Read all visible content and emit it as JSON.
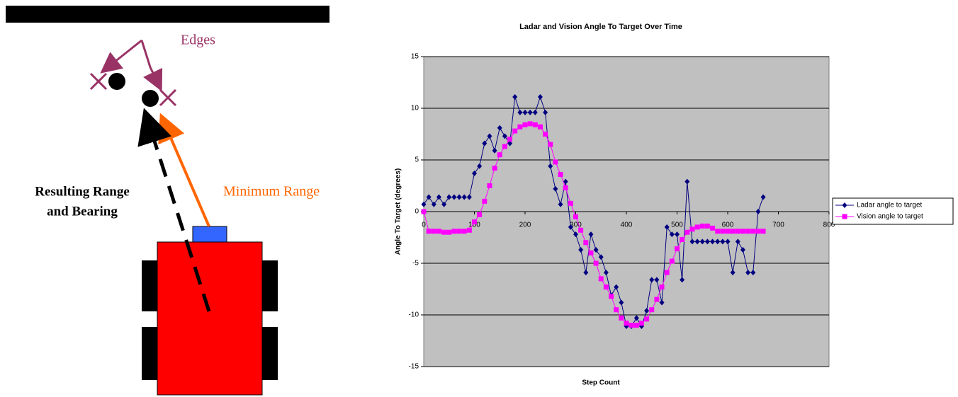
{
  "diagram": {
    "edges_label": "Edges",
    "minimum_range_label": "Minimum Range",
    "result_label_line1": "Resulting Range",
    "result_label_line2": "and Bearing"
  },
  "chart_data": {
    "type": "line",
    "title": "Ladar and Vision Angle To Target Over Time",
    "x_label": "Step Count",
    "y_label": "Angle To Target (degrees)",
    "x": [
      0,
      10,
      20,
      30,
      40,
      50,
      60,
      70,
      80,
      90,
      100,
      110,
      120,
      130,
      140,
      150,
      160,
      170,
      180,
      190,
      200,
      210,
      220,
      230,
      240,
      250,
      260,
      270,
      280,
      290,
      300,
      310,
      320,
      330,
      340,
      350,
      360,
      370,
      380,
      390,
      400,
      410,
      420,
      430,
      440,
      450,
      460,
      470,
      480,
      490,
      500,
      510,
      520,
      530,
      540,
      550,
      560,
      570,
      580,
      590,
      600,
      610,
      620,
      630,
      640,
      650,
      660,
      670
    ],
    "series": [
      {
        "name": "Ladar angle to target",
        "color": "#000080",
        "marker": "diamond",
        "values": [
          0.7,
          1.4,
          0.7,
          1.4,
          0.7,
          1.4,
          1.4,
          1.4,
          1.4,
          1.4,
          3.7,
          4.4,
          6.6,
          7.3,
          5.9,
          8.1,
          7.3,
          6.6,
          11.1,
          9.6,
          9.6,
          9.6,
          9.6,
          11.1,
          9.6,
          4.4,
          2.2,
          0.7,
          2.9,
          -1.5,
          -2.2,
          -3.7,
          -5.9,
          -2.2,
          -3.7,
          -4.4,
          -5.9,
          -8.1,
          -7.3,
          -8.8,
          -11.1,
          -11.1,
          -10.3,
          -11.1,
          -9.6,
          -6.6,
          -6.6,
          -8.8,
          -1.5,
          -2.2,
          -2.2,
          -6.6,
          2.9,
          -2.9,
          -2.9,
          -2.9,
          -2.9,
          -2.9,
          -2.9,
          -2.9,
          -2.9,
          -5.9,
          -2.9,
          -3.7,
          -5.9,
          -5.9,
          0,
          1.4
        ]
      },
      {
        "name": "Vision angle to target",
        "color": "#ff00ff",
        "marker": "square",
        "values": [
          0,
          -1.9,
          -1.9,
          -1.9,
          -2,
          -2,
          -1.9,
          -1.9,
          -1.9,
          -1.8,
          -1,
          -0.3,
          1,
          2.5,
          4.2,
          5.5,
          6.3,
          7,
          7.8,
          8.2,
          8.4,
          8.5,
          8.4,
          8.2,
          7.5,
          6.5,
          4.8,
          3.6,
          2.3,
          0.8,
          -0.5,
          -1.8,
          -3,
          -4,
          -5,
          -6.5,
          -7.3,
          -8.2,
          -9.5,
          -10.3,
          -10.8,
          -11,
          -11,
          -10.8,
          -10.4,
          -9.5,
          -8.5,
          -7.3,
          -5.9,
          -4.8,
          -3.6,
          -2.7,
          -2,
          -1.7,
          -1.5,
          -1.4,
          -1.4,
          -1.6,
          -1.9,
          -1.9,
          -1.9,
          -1.9,
          -1.9,
          -1.9,
          -1.9,
          -1.9,
          -1.9,
          -1.9
        ]
      }
    ],
    "xlim": [
      0,
      800
    ],
    "xticks": [
      0,
      100,
      200,
      300,
      400,
      500,
      600,
      700,
      800
    ],
    "ylim": [
      -15,
      15
    ],
    "yticks": [
      -15,
      -10,
      -5,
      0,
      5,
      10,
      15
    ],
    "grid": true,
    "legend": "right",
    "plot_background": "#c0c0c0"
  }
}
